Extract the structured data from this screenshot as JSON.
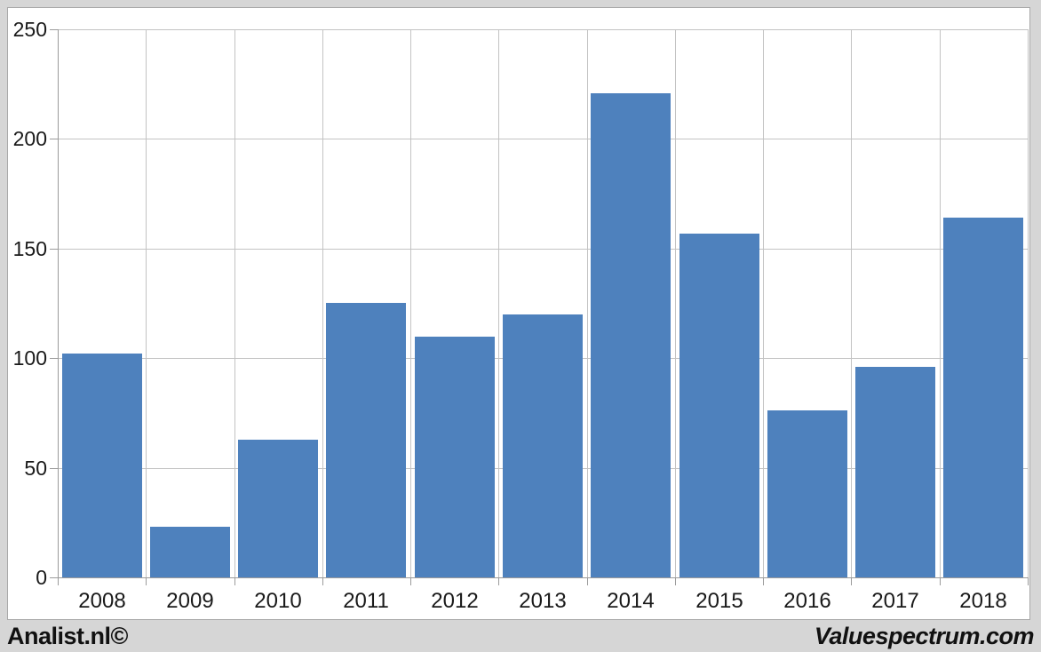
{
  "chart_data": {
    "type": "bar",
    "title": "",
    "xlabel": "",
    "ylabel": "",
    "categories": [
      "2008",
      "2009",
      "2010",
      "2011",
      "2012",
      "2013",
      "2014",
      "2015",
      "2016",
      "2017",
      "2018"
    ],
    "values": [
      102,
      23,
      63,
      125,
      110,
      120,
      221,
      157,
      76,
      96,
      164
    ],
    "ylim": [
      0,
      250
    ],
    "yticks": [
      0,
      50,
      100,
      150,
      200,
      250
    ],
    "grid": true,
    "legend": "none",
    "bar_color": "#4e81bd",
    "gridline_color": "#c3c3c3",
    "axis_color": "#9b9b9b",
    "tick_label_color": "#1a1a1a"
  },
  "footer": {
    "left_text": "Analist.nl©",
    "right_text": "Valuespectrum.com"
  },
  "colors": {
    "page_background": "#d6d6d6",
    "panel_background": "#ffffff",
    "panel_border": "#a8a8a8"
  }
}
